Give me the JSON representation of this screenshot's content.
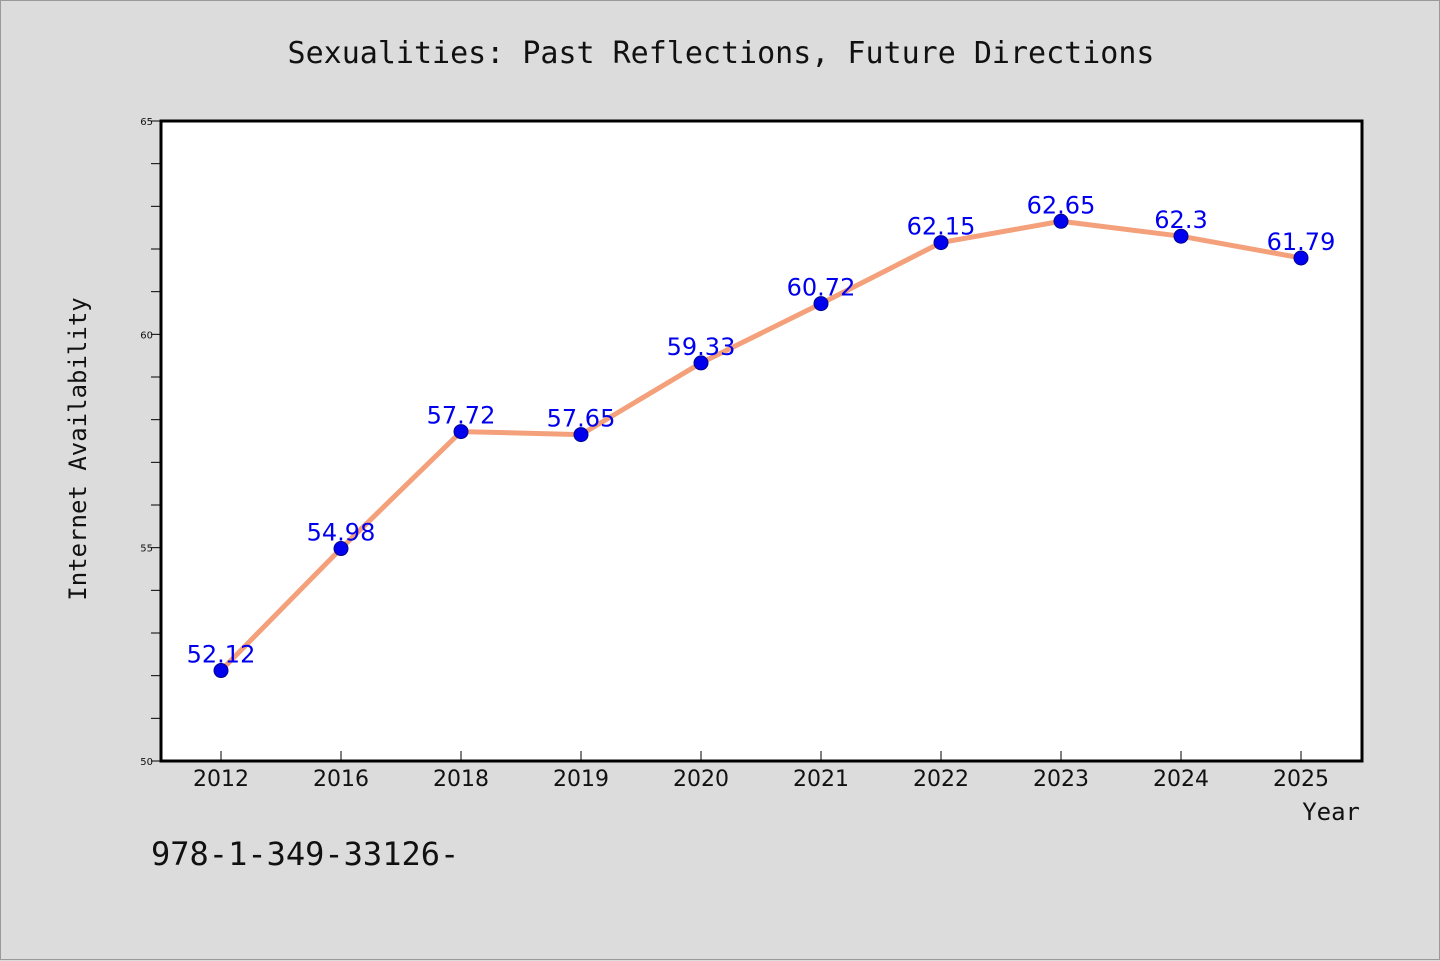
{
  "chart_data": {
    "type": "line",
    "title": "Sexualities: Past Reflections, Future Directions",
    "xlabel": "Year",
    "ylabel": "Internet Availability",
    "categories": [
      "2012",
      "2016",
      "2018",
      "2019",
      "2020",
      "2021",
      "2022",
      "2023",
      "2024",
      "2025"
    ],
    "series": [
      {
        "values": [
          52.12,
          54.98,
          57.72,
          57.65,
          59.33,
          60.72,
          62.15,
          62.65,
          62.3,
          61.79
        ],
        "data_labels": [
          "52.12",
          "54.98",
          "57.72",
          "57.65",
          "59.33",
          "60.72",
          "62.15",
          "62.65",
          "62.3",
          "61.79"
        ],
        "line_color": "#f4a07a",
        "marker_color": "#0000ee"
      }
    ],
    "ylim": [
      50,
      65
    ],
    "yticks": [
      "50",
      "55",
      "60",
      "65"
    ],
    "grid": false,
    "legend": "none"
  },
  "footer_text": "978-1-349-33126-",
  "colors": {
    "background": "#dcdcdc",
    "plot_background": "#ffffff",
    "label_color": "#0000ee"
  }
}
